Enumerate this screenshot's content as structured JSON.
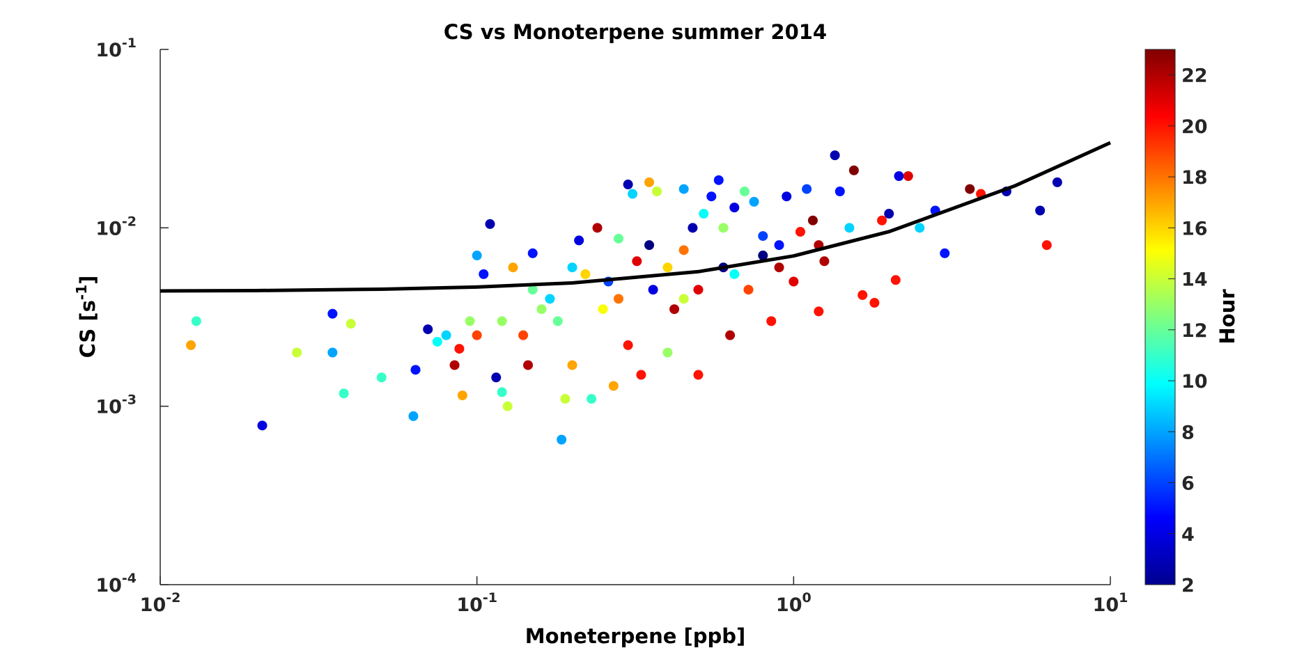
{
  "chart_data": {
    "type": "scatter",
    "title": "CS vs Monoterpene summer 2014",
    "x_label": "Moneterpene [ppb]",
    "y_label": {
      "text": "CS [s",
      "superscript": "-1",
      "suffix": "]"
    },
    "x_scale": "log",
    "y_scale": "log",
    "xlim": [
      0.01,
      10
    ],
    "ylim": [
      0.0001,
      0.1
    ],
    "xticks": [
      {
        "value": 0.01,
        "label": "10",
        "exponent": "-2"
      },
      {
        "value": 0.1,
        "label": "10",
        "exponent": "-1"
      },
      {
        "value": 1,
        "label": "10",
        "exponent": "0"
      },
      {
        "value": 10,
        "label": "10",
        "exponent": "1"
      }
    ],
    "yticks": [
      {
        "value": 0.0001,
        "label": "10",
        "exponent": "-4"
      },
      {
        "value": 0.001,
        "label": "10",
        "exponent": "-3"
      },
      {
        "value": 0.01,
        "label": "10",
        "exponent": "-2"
      },
      {
        "value": 0.1,
        "label": "10",
        "exponent": "-1"
      }
    ],
    "colorbar": {
      "label": "Hour",
      "clim": [
        2,
        23
      ],
      "ticks": [
        2,
        4,
        6,
        8,
        10,
        12,
        14,
        16,
        18,
        20,
        22
      ],
      "colormap": "jet"
    },
    "series": [
      {
        "x": [
          0.013,
          0.0125,
          0.021,
          0.027,
          0.035,
          0.035,
          0.038,
          0.04,
          0.05,
          0.063,
          0.064,
          0.07,
          0.075,
          0.08,
          0.085,
          0.09,
          0.088,
          0.095,
          0.1,
          0.105,
          0.11,
          0.115,
          0.12,
          0.125,
          0.13,
          0.14,
          0.145,
          0.15,
          0.16,
          0.17,
          0.18,
          0.185,
          0.19,
          0.2,
          0.21,
          0.22,
          0.23,
          0.24,
          0.26,
          0.27,
          0.28,
          0.3,
          0.3,
          0.31,
          0.32,
          0.33,
          0.35,
          0.36,
          0.37,
          0.4,
          0.42,
          0.45,
          0.45,
          0.48,
          0.5,
          0.52,
          0.55,
          0.58,
          0.6,
          0.63,
          0.65,
          0.7,
          0.72,
          0.75,
          0.8,
          0.85,
          0.9,
          0.95,
          1.0,
          1.05,
          1.1,
          1.15,
          1.2,
          1.25,
          1.35,
          1.4,
          1.5,
          1.55,
          1.65,
          1.8,
          1.9,
          2.0,
          2.1,
          2.15,
          2.3,
          2.5,
          2.8,
          3.0,
          3.6,
          3.9,
          4.7,
          6.0,
          6.3,
          6.8,
          0.6,
          0.25,
          0.15,
          0.4,
          0.12,
          0.5,
          0.8,
          0.35,
          0.28,
          0.65,
          0.2,
          0.1,
          0.9,
          1.2,
          0.45
        ],
        "values": [
          0.003,
          0.0022,
          0.00078,
          0.002,
          0.0033,
          0.002,
          0.00118,
          0.0029,
          0.00145,
          0.00088,
          0.0016,
          0.0027,
          0.0023,
          0.0025,
          0.0017,
          0.00115,
          0.0021,
          0.003,
          0.007,
          0.0055,
          0.0105,
          0.00145,
          0.0012,
          0.001,
          0.006,
          0.0025,
          0.0017,
          0.0072,
          0.0035,
          0.004,
          0.003,
          0.00065,
          0.0011,
          0.0017,
          0.0085,
          0.0055,
          0.0011,
          0.01,
          0.005,
          0.0013,
          0.0087,
          0.0022,
          0.0175,
          0.0155,
          0.0065,
          0.0015,
          0.018,
          0.0045,
          0.016,
          0.002,
          0.0035,
          0.0165,
          0.0075,
          0.01,
          0.0015,
          0.012,
          0.015,
          0.0185,
          0.006,
          0.0025,
          0.013,
          0.016,
          0.0045,
          0.014,
          0.009,
          0.003,
          0.006,
          0.015,
          0.005,
          0.0095,
          0.0165,
          0.011,
          0.0034,
          0.0065,
          0.0255,
          0.016,
          0.01,
          0.021,
          0.0042,
          0.0038,
          0.011,
          0.012,
          0.0051,
          0.0195,
          0.0195,
          0.01,
          0.0125,
          0.0072,
          0.0165,
          0.0155,
          0.016,
          0.0125,
          0.008,
          0.018,
          0.01,
          0.0035,
          0.0045,
          0.006,
          0.003,
          0.0045,
          0.007,
          0.008,
          0.004,
          0.0055,
          0.006,
          0.0025,
          0.008,
          0.008,
          0.004
        ],
        "color_values": [
          11,
          17,
          4,
          14,
          5,
          8,
          11,
          14,
          11,
          8,
          5,
          3,
          10,
          9,
          22,
          17,
          20,
          13,
          8,
          5,
          3,
          3,
          11,
          14,
          17,
          19,
          22,
          5,
          13,
          9,
          12,
          8,
          14,
          17,
          4,
          16,
          11,
          22,
          6,
          17,
          12,
          20,
          3,
          9,
          21,
          20,
          17,
          4,
          14,
          13,
          22,
          8,
          18,
          3,
          20,
          10,
          5,
          5,
          2,
          22,
          4,
          12,
          19,
          8,
          6,
          20,
          22,
          4,
          21,
          20,
          6,
          23,
          20,
          22,
          3,
          5,
          9,
          23,
          20,
          20,
          20,
          3,
          20,
          4,
          21,
          9,
          5,
          5,
          23,
          20,
          3,
          3,
          20,
          3,
          13,
          15,
          12,
          16,
          13,
          21,
          2,
          2,
          18,
          10,
          9,
          19,
          5,
          22,
          14
        ]
      }
    ],
    "fit": {
      "color": "#000000",
      "x": [
        0.01,
        0.02,
        0.05,
        0.1,
        0.2,
        0.5,
        1,
        2,
        5,
        10
      ],
      "values": [
        0.00443,
        0.00445,
        0.00453,
        0.00466,
        0.00491,
        0.00568,
        0.00696,
        0.00952,
        0.0172,
        0.03
      ]
    }
  }
}
